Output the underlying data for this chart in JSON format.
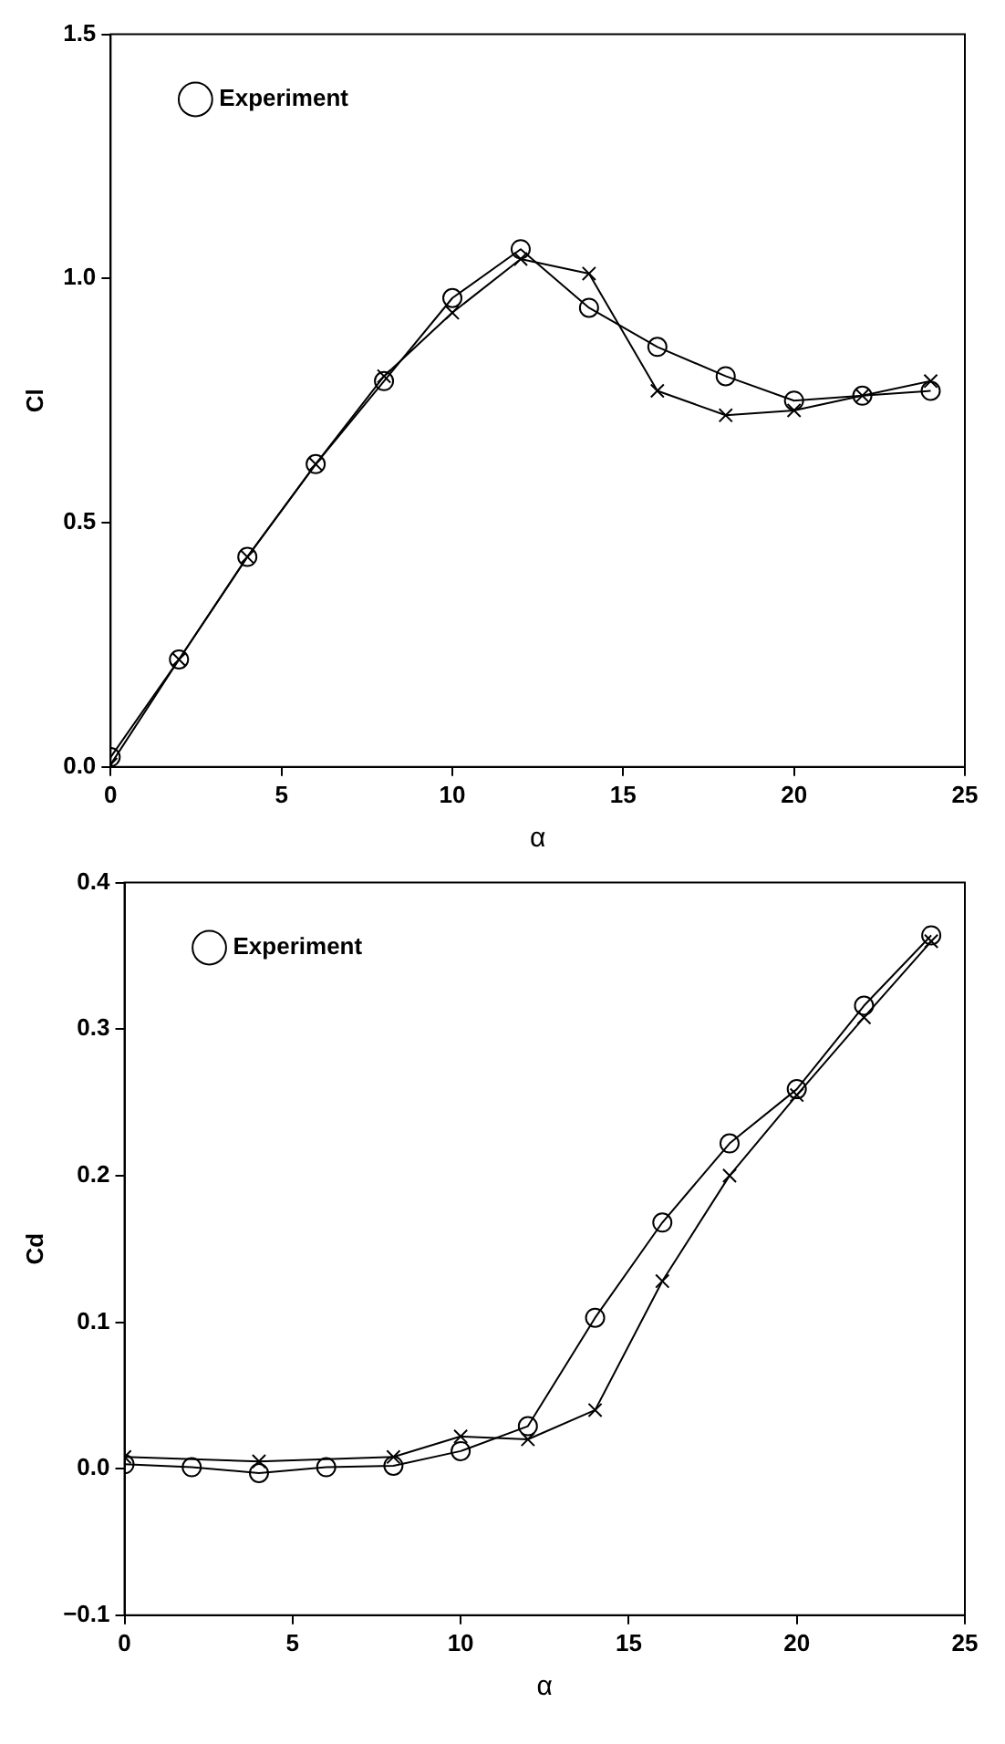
{
  "chart_data": [
    {
      "type": "line",
      "xlabel": "α",
      "ylabel": "Cl",
      "xlim": [
        0,
        25
      ],
      "xticks": [
        0,
        5,
        10,
        15,
        20,
        25
      ],
      "ylim": [
        0,
        1.5
      ],
      "yticks": [
        {
          "value": 0,
          "label": "0.0"
        },
        {
          "value": 0.5,
          "label": "0.5"
        },
        {
          "value": 1,
          "label": "1.0"
        },
        {
          "value": 1.5,
          "label": "1.5"
        }
      ],
      "grid": false,
      "legend": "top left",
      "x": [
        0,
        2,
        4,
        6,
        8,
        10,
        12,
        14,
        16,
        18,
        20,
        22,
        24
      ],
      "series": [
        {
          "color": "#000000",
          "marker": "cross",
          "values": [
            0.005,
            0.22,
            0.43,
            0.62,
            0.8,
            0.93,
            1.04,
            1.01,
            0.77,
            0.72,
            0.73,
            0.76,
            0.79
          ]
        },
        {
          "name": "Experiment",
          "color": "#000000",
          "marker": "circle",
          "values": [
            0.02,
            0.22,
            0.43,
            0.62,
            0.79,
            0.96,
            1.06,
            0.94,
            0.86,
            0.8,
            0.75,
            0.76,
            0.77
          ]
        }
      ]
    },
    {
      "type": "line",
      "xlabel": "α",
      "ylabel": "Cd",
      "xlim": [
        0,
        25
      ],
      "xticks": [
        0,
        5,
        10,
        15,
        20,
        25
      ],
      "ylim": [
        -0.1,
        0.4
      ],
      "yticks": [
        {
          "value": -0.1,
          "label": "−0.1"
        },
        {
          "value": 0,
          "label": "0.0"
        },
        {
          "value": 0.1,
          "label": "0.1"
        },
        {
          "value": 0.2,
          "label": "0.2"
        },
        {
          "value": 0.3,
          "label": "0.3"
        },
        {
          "value": 0.4,
          "label": "0.4"
        }
      ],
      "grid": false,
      "legend": "top left",
      "x": [
        0,
        2,
        4,
        6,
        8,
        10,
        12,
        14,
        16,
        18,
        20,
        22,
        24
      ],
      "series": [
        {
          "color": "#000000",
          "marker": "cross",
          "x": [
            0,
            4,
            8,
            10,
            12,
            14,
            16,
            18,
            20,
            22,
            24
          ],
          "values": [
            0.008,
            0.005,
            0.008,
            0.022,
            0.02,
            0.04,
            0.128,
            0.2,
            0.255,
            0.308,
            0.36
          ]
        },
        {
          "name": "Experiment",
          "color": "#000000",
          "marker": "circle",
          "values": [
            0.003,
            0.001,
            -0.003,
            0.001,
            0.002,
            0.012,
            0.029,
            0.103,
            0.168,
            0.222,
            0.259,
            0.316,
            0.364
          ]
        }
      ]
    }
  ]
}
